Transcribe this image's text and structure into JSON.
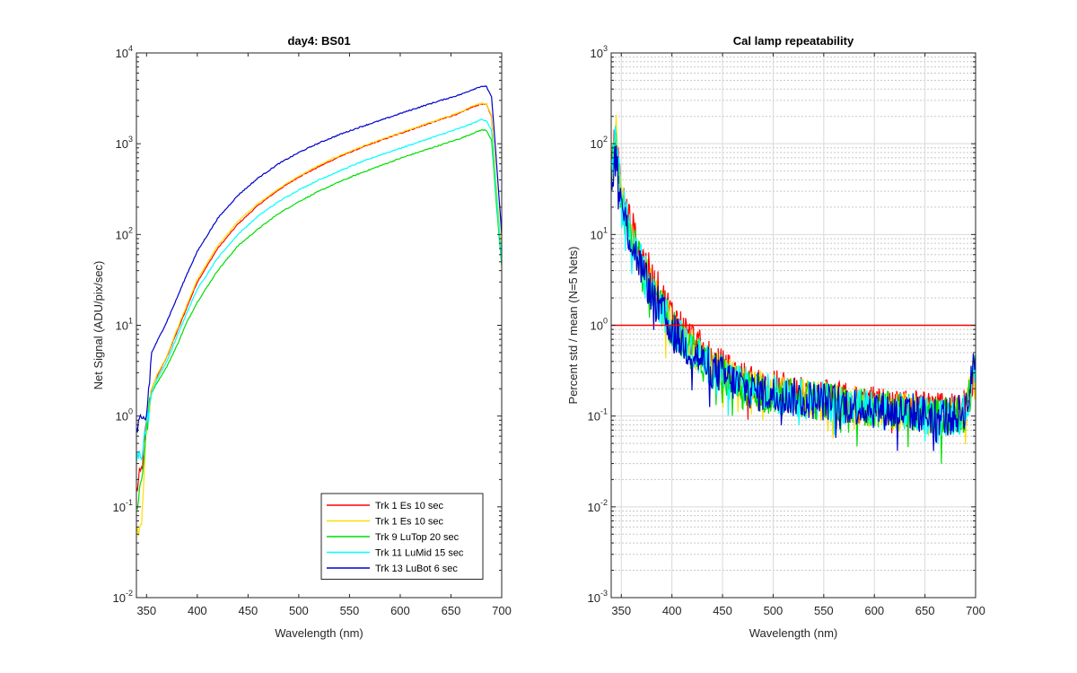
{
  "chart_data": [
    {
      "type": "line",
      "title": "day4: BS01",
      "xlabel": "Wavelength (nm)",
      "ylabel": "Net Signal (ADU/pix/sec)",
      "xlim": [
        340,
        700
      ],
      "ylim": [
        0.01,
        10000
      ],
      "yscale": "log",
      "grid": false,
      "legend_position": "bottom-right",
      "xticks": [
        "350",
        "400",
        "450",
        "500",
        "550",
        "600",
        "650",
        "700"
      ],
      "yticks": [
        {
          "base": "10",
          "exp": "-2"
        },
        {
          "base": "10",
          "exp": "-1"
        },
        {
          "base": "10",
          "exp": "0"
        },
        {
          "base": "10",
          "exp": "1"
        },
        {
          "base": "10",
          "exp": "2"
        },
        {
          "base": "10",
          "exp": "3"
        },
        {
          "base": "10",
          "exp": "4"
        }
      ],
      "x": [
        340,
        345,
        350,
        355,
        360,
        370,
        380,
        390,
        400,
        420,
        440,
        460,
        480,
        500,
        520,
        540,
        560,
        580,
        600,
        620,
        640,
        660,
        670,
        680,
        685,
        690,
        695,
        700
      ],
      "series": [
        {
          "name": "Trk 1 Es 10 sec",
          "color": "#ff0000",
          "values": [
            0.15,
            0.25,
            0.8,
            2.0,
            2.7,
            4.5,
            8.5,
            16,
            30,
            70,
            130,
            210,
            310,
            430,
            560,
            720,
            890,
            1080,
            1300,
            1550,
            1850,
            2200,
            2500,
            2750,
            2700,
            2000,
            300,
            55
          ]
        },
        {
          "name": "Trk 1 Es 10 sec",
          "color": "#ffdd00",
          "values": [
            0.05,
            0.08,
            0.8,
            2.0,
            2.8,
            4.6,
            9,
            17,
            32,
            75,
            140,
            220,
            320,
            440,
            580,
            740,
            910,
            1100,
            1320,
            1580,
            1880,
            2250,
            2550,
            2800,
            2750,
            2050,
            320,
            60
          ]
        },
        {
          "name": "Trk 9 LuTop 20 sec",
          "color": "#00dd00",
          "values": [
            0.1,
            0.2,
            0.7,
            1.8,
            2.3,
            3.5,
            6,
            11,
            18,
            40,
            75,
            115,
            170,
            230,
            300,
            380,
            470,
            570,
            690,
            820,
            970,
            1150,
            1280,
            1420,
            1400,
            1100,
            200,
            45
          ]
        },
        {
          "name": "Trk 11 LuMid 15 sec",
          "color": "#00ffff",
          "values": [
            0.3,
            0.4,
            0.8,
            1.8,
            2.5,
            4.0,
            7.5,
            14,
            25,
            55,
            100,
            160,
            230,
            310,
            400,
            500,
            620,
            750,
            890,
            1060,
            1260,
            1500,
            1650,
            1850,
            1800,
            1400,
            250,
            50
          ]
        },
        {
          "name": "Trk 13 LuBot 6 sec",
          "color": "#0000cc",
          "values": [
            0.7,
            0.8,
            1.0,
            5.0,
            6.5,
            11,
            20,
            37,
            65,
            150,
            270,
            420,
            600,
            800,
            1020,
            1260,
            1520,
            1800,
            2150,
            2550,
            3000,
            3500,
            3900,
            4300,
            4250,
            3300,
            600,
            100
          ]
        }
      ]
    },
    {
      "type": "line",
      "title": "Cal lamp repeatability",
      "xlabel": "Wavelength (nm)",
      "ylabel": "Percent std / mean (N=5 Nets)",
      "xlim": [
        340,
        700
      ],
      "ylim": [
        0.001,
        1000
      ],
      "yscale": "log",
      "grid": true,
      "xticks": [
        "350",
        "400",
        "450",
        "500",
        "550",
        "600",
        "650",
        "700"
      ],
      "yticks": [
        {
          "base": "10",
          "exp": "-3"
        },
        {
          "base": "10",
          "exp": "-2"
        },
        {
          "base": "10",
          "exp": "-1"
        },
        {
          "base": "10",
          "exp": "0"
        },
        {
          "base": "10",
          "exp": "1"
        },
        {
          "base": "10",
          "exp": "2"
        },
        {
          "base": "10",
          "exp": "3"
        }
      ],
      "reference_line": {
        "y": 1,
        "color": "#ff0000"
      },
      "x": [
        340,
        345,
        350,
        360,
        370,
        380,
        390,
        400,
        410,
        420,
        430,
        440,
        450,
        460,
        470,
        480,
        500,
        520,
        540,
        560,
        580,
        600,
        620,
        640,
        660,
        680,
        690,
        695,
        700
      ],
      "series": [
        {
          "color": "#ff0000",
          "values": [
            60,
            120,
            30,
            12,
            6,
            3.2,
            2,
            1.3,
            0.9,
            0.7,
            0.5,
            0.4,
            0.33,
            0.28,
            0.25,
            0.22,
            0.2,
            0.18,
            0.16,
            0.15,
            0.14,
            0.13,
            0.12,
            0.12,
            0.11,
            0.11,
            0.12,
            0.2,
            0.5
          ]
        },
        {
          "color": "#ffdd00",
          "values": [
            70,
            130,
            25,
            10,
            5,
            2.5,
            1.6,
            1.0,
            0.7,
            0.55,
            0.42,
            0.35,
            0.3,
            0.25,
            0.22,
            0.2,
            0.18,
            0.16,
            0.15,
            0.14,
            0.13,
            0.12,
            0.11,
            0.11,
            0.1,
            0.1,
            0.11,
            0.18,
            0.4
          ]
        },
        {
          "color": "#00dd00",
          "values": [
            50,
            100,
            22,
            9,
            4.5,
            2.3,
            1.5,
            0.95,
            0.68,
            0.52,
            0.4,
            0.33,
            0.28,
            0.24,
            0.21,
            0.19,
            0.17,
            0.16,
            0.15,
            0.14,
            0.13,
            0.12,
            0.11,
            0.11,
            0.1,
            0.1,
            0.11,
            0.18,
            0.45
          ]
        },
        {
          "color": "#00ffff",
          "values": [
            55,
            110,
            24,
            9.5,
            4.8,
            2.4,
            1.55,
            1.0,
            0.7,
            0.53,
            0.41,
            0.34,
            0.29,
            0.25,
            0.22,
            0.2,
            0.18,
            0.16,
            0.15,
            0.14,
            0.13,
            0.12,
            0.11,
            0.11,
            0.1,
            0.1,
            0.11,
            0.18,
            0.45
          ]
        },
        {
          "color": "#0000cc",
          "values": [
            40,
            80,
            20,
            8,
            4.2,
            2.2,
            1.4,
            0.9,
            0.65,
            0.5,
            0.4,
            0.33,
            0.28,
            0.24,
            0.21,
            0.19,
            0.17,
            0.16,
            0.15,
            0.14,
            0.13,
            0.12,
            0.11,
            0.11,
            0.1,
            0.1,
            0.12,
            0.2,
            0.55
          ]
        }
      ]
    }
  ]
}
